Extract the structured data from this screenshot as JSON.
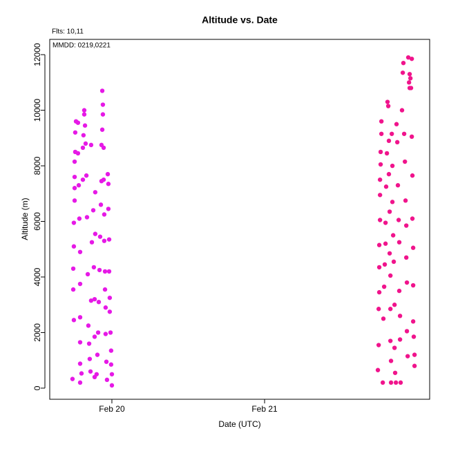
{
  "chart_data": {
    "type": "scatter",
    "title": "Altitude  vs. Date",
    "annotations": [
      "Flts: 10,11",
      "MMDD: 0219,0221"
    ],
    "x_label": "Date (UTC)",
    "y_label": "Altitude (m)",
    "xlim": [
      19.593,
      22.081
    ],
    "xticks": [
      {
        "value": 20,
        "label": "Feb 20"
      },
      {
        "value": 21,
        "label": "Feb 21"
      }
    ],
    "ylim": [
      -400,
      12550
    ],
    "yticks": [
      0,
      2000,
      4000,
      6000,
      8000,
      10000,
      12000
    ],
    "series": [
      {
        "color": "#e619e6",
        "x": [
          19.742,
          19.751,
          19.747,
          19.747,
          19.751,
          19.751,
          19.756,
          19.756,
          19.756,
          19.756,
          19.76,
          19.76,
          19.765,
          19.778,
          19.778,
          19.783,
          19.787,
          19.792,
          19.792,
          19.792,
          19.792,
          19.792,
          19.792,
          19.801,
          19.81,
          19.81,
          19.814,
          19.819,
          19.819,
          19.824,
          19.828,
          19.833,
          19.837,
          19.842,
          19.846,
          19.851,
          19.855,
          19.86,
          19.864,
          19.864,
          19.869,
          19.878,
          19.882,
          19.887,
          19.887,
          19.887,
          19.891,
          19.891,
          19.9,
          19.905,
          19.91,
          19.914,
          19.919,
          19.923,
          19.928,
          19.932,
          19.932,
          19.937,
          19.937,
          19.941,
          19.941,
          19.946,
          19.946,
          19.95,
          19.95,
          19.955,
          19.955,
          19.959,
          19.959,
          19.964,
          19.968,
          19.973,
          19.977,
          19.977,
          19.982,
          19.982,
          19.986,
          19.986,
          19.991,
          19.995,
          19.995,
          20.0,
          20.0
        ],
        "values": [
          330,
          2450,
          3550,
          4300,
          5100,
          5950,
          6750,
          7200,
          7600,
          8150,
          8500,
          9200,
          9600,
          9550,
          8450,
          7300,
          6100,
          4900,
          3750,
          2550,
          1650,
          880,
          200,
          530,
          7500,
          8650,
          9100,
          9850,
          10000,
          9450,
          8800,
          7650,
          6150,
          4100,
          2250,
          1600,
          1050,
          600,
          8750,
          3150,
          5250,
          6400,
          4350,
          3200,
          1850,
          400,
          5550,
          7050,
          500,
          1200,
          2000,
          3100,
          4250,
          5450,
          6600,
          7450,
          8750,
          9300,
          10700,
          10200,
          9850,
          8650,
          7500,
          6250,
          5300,
          4200,
          3550,
          2900,
          1950,
          950,
          300,
          7700,
          7350,
          6450,
          5350,
          4200,
          3250,
          2750,
          2000,
          1350,
          850,
          500,
          100
        ]
      },
      {
        "color": "#f0148c",
        "x": [
          21.742,
          21.747,
          21.747,
          21.751,
          21.751,
          21.751,
          21.756,
          21.756,
          21.756,
          21.76,
          21.76,
          21.765,
          21.765,
          21.774,
          21.778,
          21.783,
          21.787,
          21.792,
          21.792,
          21.796,
          21.801,
          21.805,
          21.81,
          21.814,
          21.814,
          21.819,
          21.819,
          21.824,
          21.824,
          21.824,
          21.828,
          21.828,
          21.833,
          21.837,
          21.837,
          21.842,
          21.846,
          21.851,
          21.851,
          21.855,
          21.86,
          21.864,
          21.869,
          21.873,
          21.878,
          21.882,
          21.882,
          21.887,
          21.887,
          21.891,
          21.9,
          21.905,
          21.909,
          21.914,
          21.919,
          21.923,
          21.928,
          21.928,
          21.932,
          21.932,
          21.937,
          21.941,
          21.946,
          21.95,
          21.955,
          21.959,
          21.964,
          21.968,
          21.968,
          21.973,
          21.973,
          21.973,
          21.977,
          21.982,
          21.982,
          21.964,
          21.95
        ],
        "values": [
          650,
          1550,
          2850,
          3450,
          4350,
          5150,
          6050,
          6950,
          7500,
          8050,
          8500,
          9150,
          9600,
          200,
          2500,
          3650,
          4450,
          5200,
          5950,
          7250,
          8450,
          10300,
          10150,
          8900,
          7700,
          6350,
          4850,
          4050,
          2850,
          1700,
          980,
          200,
          9150,
          8000,
          6700,
          5500,
          4550,
          3000,
          1450,
          550,
          200,
          9500,
          8850,
          7300,
          6050,
          5250,
          3500,
          2600,
          1750,
          200,
          10000,
          11350,
          11700,
          9150,
          8150,
          6750,
          5850,
          4700,
          3800,
          2050,
          1150,
          11900,
          11000,
          10800,
          11150,
          10800,
          9050,
          7650,
          6100,
          5050,
          3700,
          2400,
          1850,
          1200,
          800,
          11850,
          11300
        ]
      }
    ]
  }
}
